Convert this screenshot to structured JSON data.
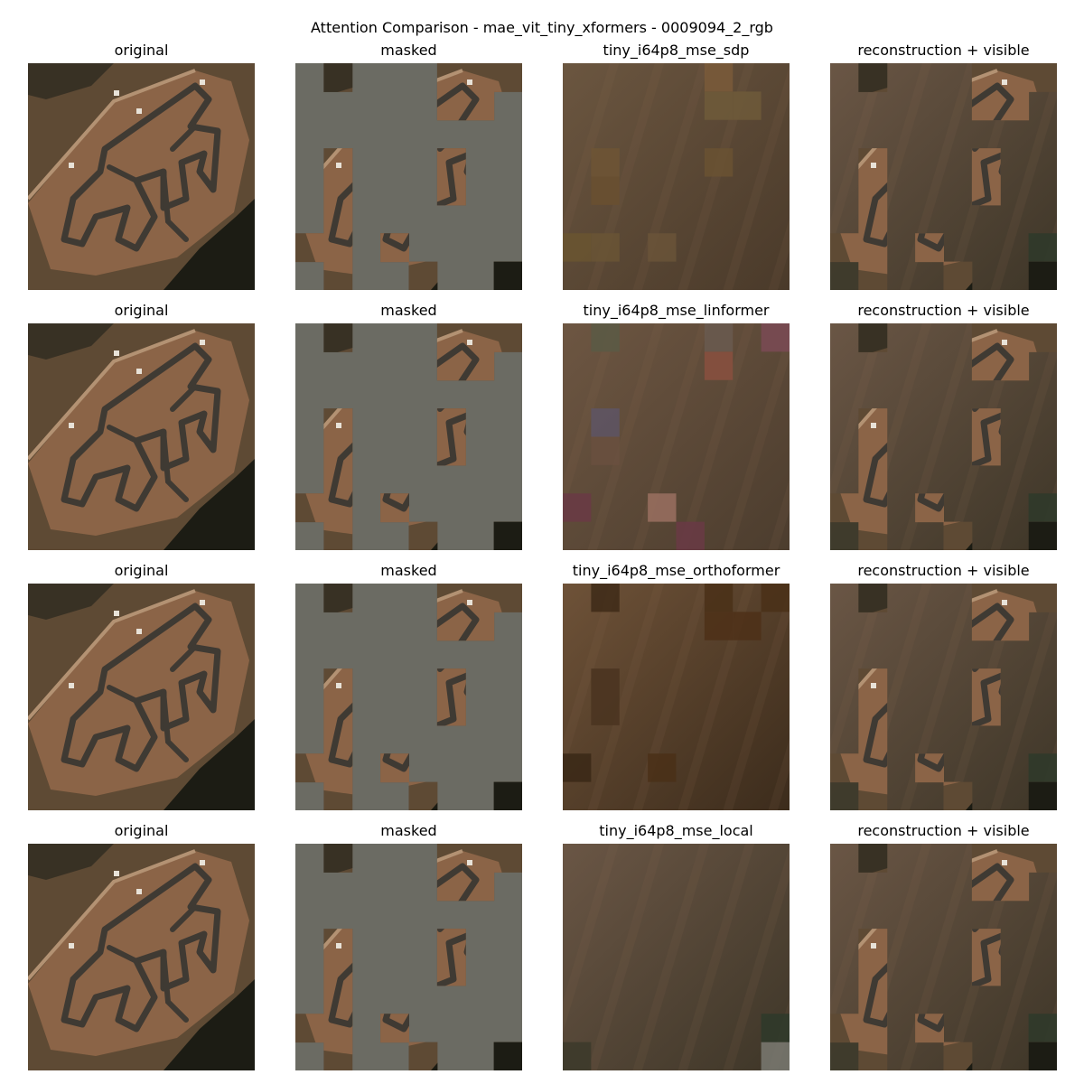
{
  "figure": {
    "title": "Attention Comparison - mae_vit_tiny_xformers - 0009094_2_rgb"
  },
  "rows": [
    {
      "titles": [
        "original",
        "masked",
        "tiny_i64p8_mse_sdp",
        "reconstruction + visible"
      ]
    },
    {
      "titles": [
        "original",
        "masked",
        "tiny_i64p8_mse_linformer",
        "reconstruction + visible"
      ]
    },
    {
      "titles": [
        "original",
        "masked",
        "tiny_i64p8_mse_orthoformer",
        "reconstruction + visible"
      ]
    },
    {
      "titles": [
        "original",
        "masked",
        "tiny_i64p8_mse_local",
        "reconstruction + visible"
      ]
    }
  ],
  "image_description": {
    "grid_patches": 8,
    "visible_patches": [
      [
        0,
        1
      ],
      [
        0,
        5
      ],
      [
        0,
        6
      ],
      [
        0,
        7
      ],
      [
        1,
        5
      ],
      [
        1,
        6
      ],
      [
        3,
        1
      ],
      [
        3,
        5
      ],
      [
        4,
        1
      ],
      [
        4,
        5
      ],
      [
        5,
        1
      ],
      [
        6,
        0
      ],
      [
        6,
        1
      ],
      [
        6,
        3
      ],
      [
        7,
        1
      ],
      [
        7,
        4
      ],
      [
        7,
        7
      ]
    ],
    "mask_color": "#6b6b63",
    "terrain_color": "#5e4a34",
    "soil_color": "#8b6447",
    "track_color": "#3f3a33",
    "vegetation_color": "#1c1c14"
  }
}
